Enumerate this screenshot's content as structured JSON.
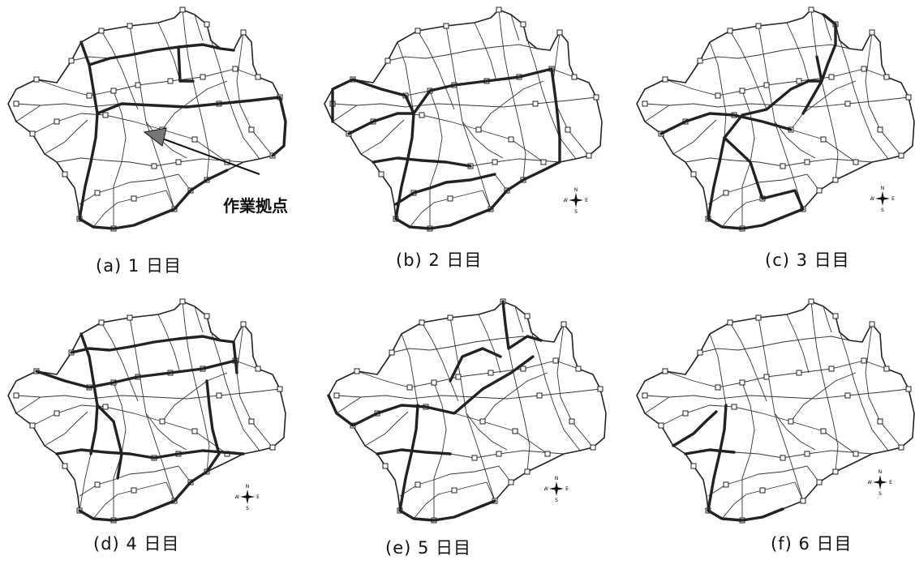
{
  "annotation": {
    "label": "作業拠点"
  },
  "compass": {
    "n": "N",
    "e": "E",
    "s": "S",
    "w": "W"
  },
  "panels": [
    {
      "caption": "(a) 1 日目"
    },
    {
      "caption": "(b) 2 日目"
    },
    {
      "caption": "(c) 3 日目"
    },
    {
      "caption": "(d) 4 日目"
    },
    {
      "caption": "(e) 5 日目"
    },
    {
      "caption": "(f) 6 日目"
    }
  ]
}
